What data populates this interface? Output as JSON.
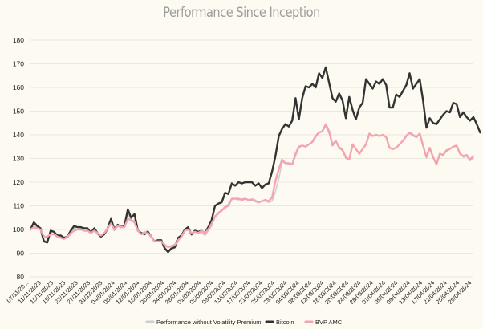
{
  "chart_data": {
    "type": "line",
    "title": "Performance Since Inception",
    "ylim": [
      80,
      180
    ],
    "yticks": [
      80,
      90,
      100,
      110,
      120,
      130,
      140,
      150,
      160,
      170,
      180
    ],
    "grid": "horizontal",
    "legend_position": "bottom",
    "x_tick_labels": [
      "07/11/20...",
      "11/11/2023",
      "15/11/2023",
      "19/11/2023",
      "23/11/2023",
      "27/11/2023",
      "31/12/2023",
      "04/01/2024",
      "08/01/2024",
      "12/01/2024",
      "16/01/2024",
      "20/01/2024",
      "24/01/2024",
      "28/01/2024",
      "01/02/2024",
      "05/02/2024",
      "09/02/2024",
      "13/02/2024",
      "17/02/2024",
      "21/02/2024",
      "25/02/2024",
      "29/02/2024",
      "04/03/2024",
      "08/03/2024",
      "12/03/2024",
      "16/03/2024",
      "20/03/2024",
      "24/03/2024",
      "28/03/2024",
      "01/04/2024",
      "05/04/2024",
      "09/04/2024",
      "13/04/2024",
      "17/04/2024",
      "21/04/2024",
      "25/04/2024",
      "29/04/2024"
    ],
    "series": [
      {
        "name": "Performance without Volatility Premium",
        "color": "#cfcfcf",
        "values": [
          100,
          102.5,
          100.5,
          100,
          95.5,
          95,
          99,
          99,
          97.5,
          97.5,
          96,
          96.5,
          98,
          100.5,
          101,
          100.5,
          100.5,
          100.5,
          98.5,
          100,
          98,
          97,
          98,
          100,
          103,
          99.5,
          102,
          101.5,
          101.5,
          107,
          103.5,
          104,
          99.5,
          98,
          99,
          99.5,
          97,
          95,
          95.5,
          95,
          92.5,
          91,
          92,
          92,
          95,
          97.5,
          99.5,
          100,
          97.5,
          99,
          98.5,
          98.5,
          97.5,
          99.5,
          101.5,
          105.5,
          106.5,
          108.5,
          108.5,
          111,
          113,
          113,
          112.5,
          113,
          113,
          112.5,
          113,
          112.5,
          111.5,
          112,
          112,
          111.5,
          112,
          116,
          121.5,
          128.5,
          128,
          127.5,
          127.5,
          131,
          134.5,
          135.5,
          135,
          136,
          137,
          139,
          141,
          141.5,
          143.5,
          140.5,
          136.5,
          137,
          135,
          134,
          130,
          129.5,
          135.5,
          134,
          132,
          134,
          136,
          140.5,
          139.5,
          140,
          139.5,
          140,
          139,
          134.5,
          134,
          134.5,
          136,
          137.5,
          139.5,
          140.5,
          139.5,
          139,
          140,
          135,
          130.5,
          134.5,
          130.5,
          127.5,
          132,
          131.5,
          133,
          134,
          135,
          135,
          132,
          130.5,
          131,
          129,
          130
        ]
      },
      {
        "name": "Bitcoin",
        "color": "#333333",
        "values": [
          100,
          103,
          101.5,
          100.5,
          95,
          94.5,
          99.5,
          99,
          97.5,
          97.5,
          96.5,
          97,
          99.5,
          101.5,
          101,
          101,
          100.5,
          100.5,
          98.5,
          100.5,
          98.5,
          97,
          98,
          100.5,
          104.5,
          100,
          102,
          101,
          101.5,
          108.5,
          105,
          106.5,
          99.5,
          98.5,
          98,
          99,
          97,
          95,
          95.5,
          95.5,
          92,
          90.5,
          92,
          92.5,
          96.5,
          97.5,
          100,
          101,
          98,
          99.5,
          99,
          99.5,
          98.5,
          101,
          104,
          110,
          111,
          111.5,
          115.5,
          115,
          119.5,
          118.5,
          120,
          119.5,
          120,
          120,
          120,
          118.5,
          119.5,
          117.5,
          119,
          119.5,
          124.5,
          131,
          139.5,
          142.5,
          144.5,
          143.5,
          146,
          155.5,
          146.5,
          155.5,
          160.5,
          160,
          161.5,
          160,
          166,
          164,
          168.5,
          162,
          155.5,
          154,
          157.5,
          154.5,
          147,
          156,
          150.5,
          146.5,
          151.5,
          153.5,
          163.5,
          161.5,
          159.5,
          162.5,
          161.5,
          163.5,
          161,
          151.5,
          151.5,
          157,
          156,
          158.5,
          161,
          166,
          159.5,
          161.5,
          163.5,
          154.5,
          143,
          147,
          145,
          144.5,
          146.5,
          148.5,
          150,
          149.5,
          153.5,
          153,
          147.5,
          149.5,
          147.5,
          146,
          147.5,
          144.5,
          141
        ]
      },
      {
        "name": "BVP AMC",
        "color": "#f4a3b3",
        "values": [
          100,
          101,
          100.5,
          100,
          97,
          97,
          98,
          98,
          97,
          96.5,
          96,
          97,
          98.5,
          99.5,
          100,
          100,
          99.5,
          99.5,
          98.5,
          99.5,
          98.5,
          97.5,
          98.5,
          100.5,
          102.5,
          100,
          101.5,
          101,
          101,
          104.5,
          104,
          103,
          99.5,
          98,
          98.5,
          98.5,
          97,
          95,
          95,
          95,
          93.5,
          92.5,
          93,
          93.5,
          95.5,
          97,
          99.5,
          100,
          98.5,
          99,
          98.5,
          99.5,
          98.5,
          100,
          102.5,
          105.5,
          107,
          108,
          109.5,
          110,
          113,
          113,
          113,
          112.5,
          113,
          112.5,
          112.5,
          112,
          111.5,
          112,
          112.5,
          112,
          113.5,
          120.5,
          125.5,
          129.5,
          128,
          128,
          127.5,
          132,
          135,
          135.5,
          135,
          136,
          137,
          139.5,
          141,
          141.5,
          144.5,
          141.5,
          135.5,
          137.5,
          134.5,
          133.5,
          130.5,
          129.5,
          136,
          134,
          132,
          134,
          136,
          140.5,
          139.5,
          140,
          139.5,
          140,
          139,
          134.5,
          134,
          134.5,
          136,
          137.5,
          139.5,
          141,
          140,
          139,
          140.5,
          135.5,
          130.5,
          134.5,
          130.5,
          127.5,
          132,
          131.5,
          133.5,
          134,
          135,
          135.5,
          132,
          131,
          131.5,
          129.5,
          131
        ]
      }
    ]
  }
}
